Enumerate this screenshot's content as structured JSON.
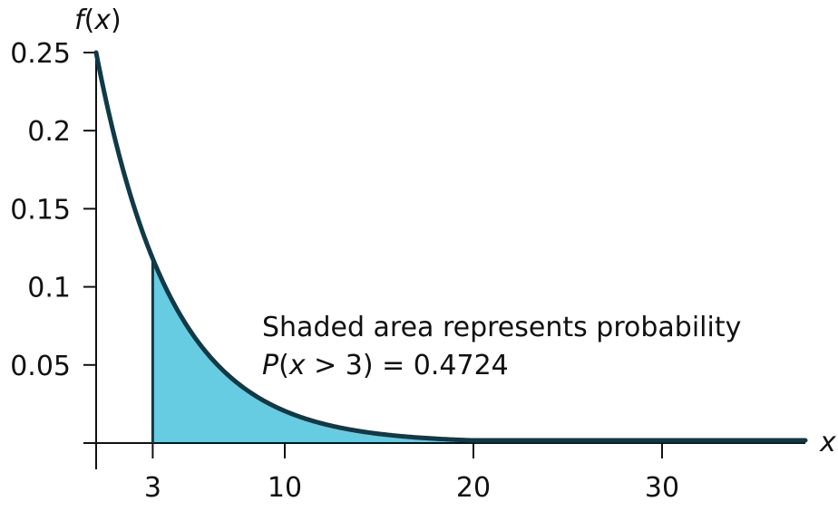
{
  "chart_data": {
    "type": "area",
    "distribution": "exponential",
    "rate": 0.25,
    "ylabel": "f(x)",
    "xlabel": "x",
    "xlim": [
      0,
      38
    ],
    "ylim": [
      0,
      0.25
    ],
    "x_ticks": [
      3,
      10,
      20,
      30
    ],
    "y_ticks": [
      0.05,
      0.1,
      0.15,
      0.2,
      0.25
    ],
    "y_tick_labels": [
      "0.05",
      "0.1",
      "0.15",
      "0.2",
      "0.25"
    ],
    "shade_from": 3,
    "annotation": {
      "line1": "Shaded area represents probability",
      "line2_func": "P",
      "line2_open": "(",
      "line2_var": "x",
      "line2_rest": " > 3) = 0.4724"
    },
    "colors": {
      "curve": "#0f3a48",
      "fill": "#66cce2",
      "axis": "#111111"
    },
    "grid": false
  }
}
